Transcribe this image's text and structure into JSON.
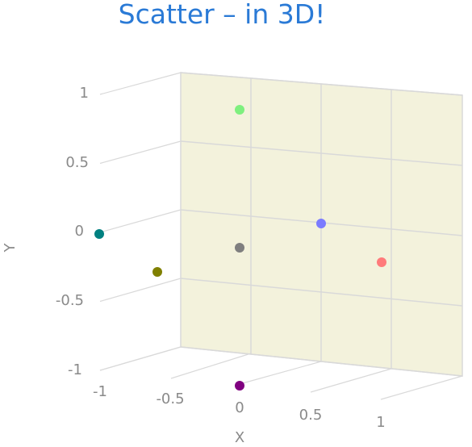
{
  "chart_data": {
    "type": "scatter",
    "title": "Scatter – in 3D!",
    "xlabel": "X",
    "ylabel": "Y",
    "x_ticks": [
      "-1",
      "-0.5",
      "0",
      "0.5",
      "1"
    ],
    "y_ticks": [
      "1",
      "0.5",
      "0",
      "-0.5",
      "-1"
    ],
    "xlim": [
      -1,
      1
    ],
    "ylim": [
      -1,
      1
    ],
    "wall_color": "#f3f2dc",
    "grid_color": "#d9d9d9",
    "points": [
      {
        "x": 0,
        "y": 0.9,
        "color": "#7ef07e"
      },
      {
        "x": 0.5,
        "y": 0.05,
        "color": "#7b7bff"
      },
      {
        "x": 0.9,
        "y": -0.2,
        "color": "#ff7b7b"
      },
      {
        "x": 0,
        "y": -0.1,
        "color": "#7f7f7f"
      },
      {
        "x": -1,
        "y": 0,
        "color": "#008080"
      },
      {
        "x": -0.6,
        "y": -0.3,
        "color": "#808000"
      },
      {
        "x": 0,
        "y": -1,
        "color": "#800080"
      }
    ]
  }
}
